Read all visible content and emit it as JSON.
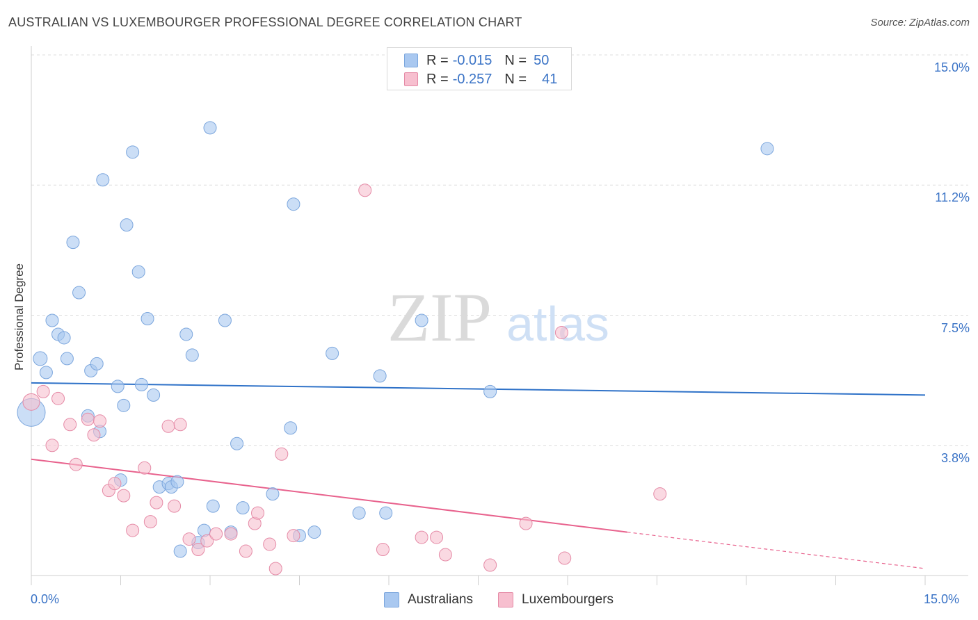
{
  "title": "AUSTRALIAN VS LUXEMBOURGER PROFESSIONAL DEGREE CORRELATION CHART",
  "source": "Source: ZipAtlas.com",
  "watermark": {
    "zip": "ZIP",
    "atlas": "atlas"
  },
  "legend": {
    "rows": [
      {
        "r_label": "R =",
        "r_value": "-0.015",
        "n_label": "N =",
        "n_value": "50",
        "color": "#a9c8f0",
        "border": "#7ba6dd"
      },
      {
        "r_label": "R =",
        "r_value": "-0.257",
        "n_label": "N =",
        "n_value": "41",
        "color": "#f7bfcf",
        "border": "#e58aa6"
      }
    ]
  },
  "bottom_legend": [
    {
      "label": "Australians",
      "color": "#a9c8f0",
      "border": "#7ba6dd"
    },
    {
      "label": "Luxembourgers",
      "color": "#f7bfcf",
      "border": "#e58aa6"
    }
  ],
  "chart_data": {
    "type": "scatter",
    "title": "AUSTRALIAN VS LUXEMBOURGER PROFESSIONAL DEGREE CORRELATION CHART",
    "xlabel": "",
    "ylabel": "Professional Degree",
    "xlim": [
      0,
      15
    ],
    "ylim": [
      0,
      15
    ],
    "x_tick_labels": [
      "0.0%",
      "15.0%"
    ],
    "y_tick_labels": [
      "15.0%",
      "11.2%",
      "7.5%",
      "3.8%"
    ],
    "y_ticks": [
      15.0,
      11.25,
      7.5,
      3.75
    ],
    "grid": true,
    "legend_position": "top-center",
    "series": [
      {
        "name": "Australians",
        "color": "#7ba6dd",
        "fill": "#a9c8f0",
        "trend": {
          "x": [
            0,
            15
          ],
          "y": [
            5.55,
            5.2
          ],
          "color": "#2f72c8"
        },
        "points": [
          [
            0.0,
            4.7,
            20
          ],
          [
            0.15,
            6.25,
            10
          ],
          [
            0.25,
            5.85,
            9
          ],
          [
            0.35,
            7.35,
            9
          ],
          [
            0.45,
            6.95,
            9
          ],
          [
            0.55,
            6.85,
            9
          ],
          [
            0.6,
            6.25,
            9
          ],
          [
            0.7,
            9.6,
            9
          ],
          [
            0.8,
            8.15,
            9
          ],
          [
            0.95,
            4.6,
            9
          ],
          [
            1.0,
            5.9,
            9
          ],
          [
            1.1,
            6.1,
            9
          ],
          [
            1.15,
            4.15,
            9
          ],
          [
            1.2,
            11.4,
            9
          ],
          [
            1.45,
            5.45,
            9
          ],
          [
            1.5,
            2.75,
            9
          ],
          [
            1.55,
            4.9,
            9
          ],
          [
            1.6,
            10.1,
            9
          ],
          [
            1.7,
            12.2,
            9
          ],
          [
            1.8,
            8.75,
            9
          ],
          [
            1.85,
            5.5,
            9
          ],
          [
            1.95,
            7.4,
            9
          ],
          [
            2.05,
            5.2,
            9
          ],
          [
            2.15,
            2.55,
            9
          ],
          [
            2.3,
            2.65,
            9
          ],
          [
            2.35,
            2.55,
            9
          ],
          [
            2.45,
            2.7,
            9
          ],
          [
            2.5,
            0.7,
            9
          ],
          [
            2.6,
            6.95,
            9
          ],
          [
            2.7,
            6.35,
            9
          ],
          [
            2.8,
            0.95,
            9
          ],
          [
            2.9,
            1.3,
            9
          ],
          [
            3.0,
            12.9,
            9
          ],
          [
            3.05,
            2.0,
            9
          ],
          [
            3.25,
            7.35,
            9
          ],
          [
            3.35,
            1.25,
            9
          ],
          [
            3.45,
            3.8,
            9
          ],
          [
            3.55,
            1.95,
            9
          ],
          [
            4.05,
            2.35,
            9
          ],
          [
            4.35,
            4.25,
            9
          ],
          [
            4.4,
            10.7,
            9
          ],
          [
            4.5,
            1.15,
            9
          ],
          [
            4.75,
            1.25,
            9
          ],
          [
            5.05,
            6.4,
            9
          ],
          [
            5.5,
            1.8,
            9
          ],
          [
            5.85,
            5.75,
            9
          ],
          [
            5.95,
            1.8,
            9
          ],
          [
            6.55,
            7.35,
            9
          ],
          [
            7.7,
            5.3,
            9
          ],
          [
            12.35,
            12.3,
            9
          ]
        ]
      },
      {
        "name": "Luxembourgers",
        "color": "#e58aa6",
        "fill": "#f7bfcf",
        "trend": {
          "x": [
            0,
            10
          ],
          "y": [
            3.35,
            1.25
          ],
          "dashed_to": [
            15,
            0.2
          ],
          "color": "#e8628d"
        },
        "points": [
          [
            0.0,
            5.0,
            12
          ],
          [
            0.2,
            5.3,
            9
          ],
          [
            0.35,
            3.75,
            9
          ],
          [
            0.45,
            5.1,
            9
          ],
          [
            0.65,
            4.35,
            9
          ],
          [
            0.75,
            3.2,
            9
          ],
          [
            0.95,
            4.5,
            9
          ],
          [
            1.05,
            4.05,
            9
          ],
          [
            1.15,
            4.45,
            9
          ],
          [
            1.3,
            2.45,
            9
          ],
          [
            1.4,
            2.65,
            9
          ],
          [
            1.55,
            2.3,
            9
          ],
          [
            1.7,
            1.3,
            9
          ],
          [
            1.9,
            3.1,
            9
          ],
          [
            2.0,
            1.55,
            9
          ],
          [
            2.1,
            2.1,
            9
          ],
          [
            2.3,
            4.3,
            9
          ],
          [
            2.4,
            2.0,
            9
          ],
          [
            2.5,
            4.35,
            9
          ],
          [
            2.65,
            1.05,
            9
          ],
          [
            2.8,
            0.75,
            9
          ],
          [
            2.95,
            1.0,
            9
          ],
          [
            3.1,
            1.2,
            9
          ],
          [
            3.35,
            1.2,
            9
          ],
          [
            3.6,
            0.7,
            9
          ],
          [
            3.75,
            1.5,
            9
          ],
          [
            3.8,
            1.8,
            9
          ],
          [
            4.0,
            0.9,
            9
          ],
          [
            4.1,
            0.2,
            9
          ],
          [
            4.2,
            3.5,
            9
          ],
          [
            4.4,
            1.15,
            9
          ],
          [
            5.6,
            11.1,
            9
          ],
          [
            5.9,
            0.75,
            9
          ],
          [
            6.55,
            1.1,
            9
          ],
          [
            6.8,
            1.1,
            9
          ],
          [
            6.95,
            0.6,
            9
          ],
          [
            7.7,
            0.3,
            9
          ],
          [
            8.3,
            1.5,
            9
          ],
          [
            8.9,
            7.0,
            9
          ],
          [
            8.95,
            0.5,
            9
          ],
          [
            10.55,
            2.35,
            9
          ]
        ]
      }
    ]
  }
}
